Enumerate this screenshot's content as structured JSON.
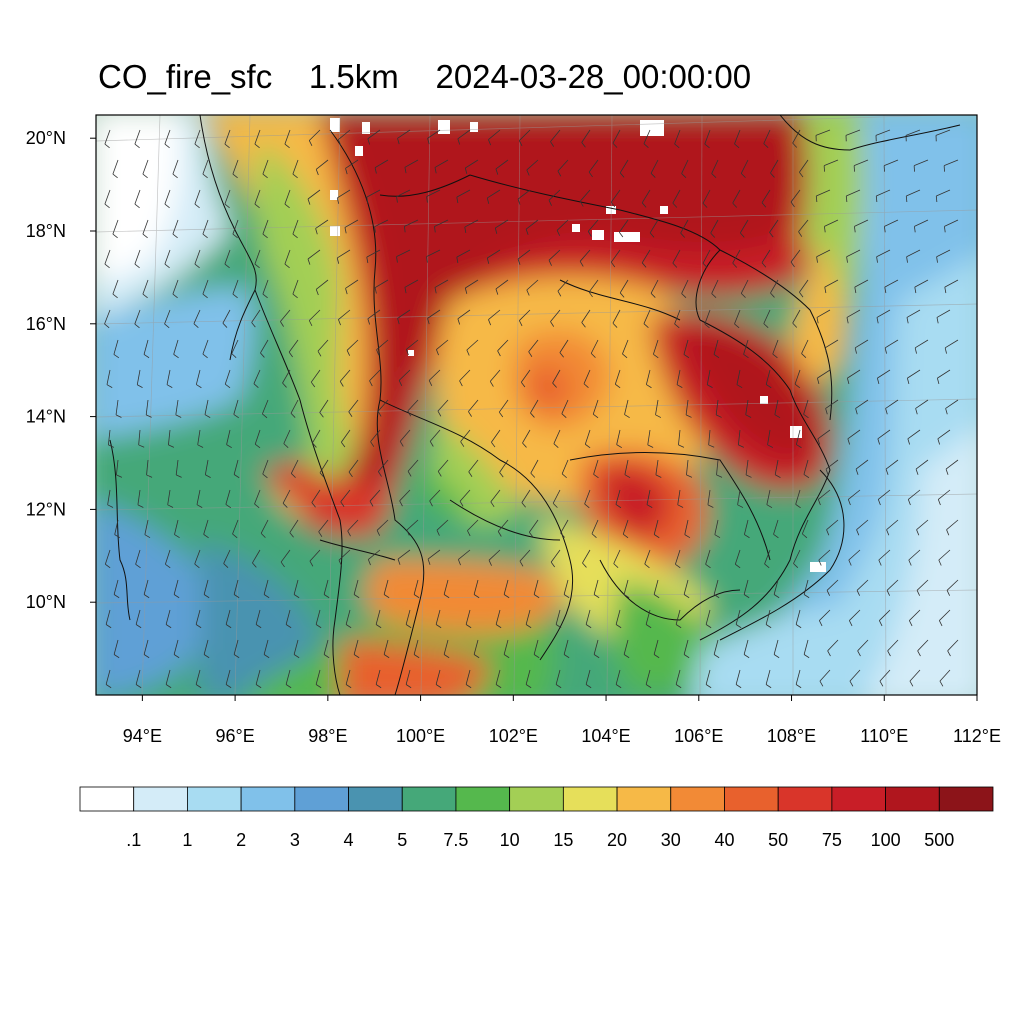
{
  "title": {
    "variable": "CO_fire_sfc",
    "level": "1.5km",
    "time": "2024-03-28_00:00:00"
  },
  "map": {
    "lon_range": [
      93,
      112
    ],
    "lat_range": [
      8,
      20.5
    ],
    "x_ticks": [
      "94°E",
      "96°E",
      "98°E",
      "100°E",
      "102°E",
      "104°E",
      "106°E",
      "108°E",
      "110°E",
      "112°E"
    ],
    "x_tick_values": [
      94,
      96,
      98,
      100,
      102,
      104,
      106,
      108,
      110,
      112
    ],
    "y_ticks": [
      "20°N",
      "18°N",
      "16°N",
      "14°N",
      "12°N",
      "10°N"
    ],
    "y_tick_values": [
      20,
      18,
      16,
      14,
      12,
      10
    ],
    "overlay": "wind barbs",
    "borders": "country and coastline outlines"
  },
  "colorbar": {
    "labels": [
      ".1",
      "1",
      "2",
      "3",
      "4",
      "5",
      "7.5",
      "10",
      "15",
      "20",
      "30",
      "40",
      "50",
      "75",
      "100",
      "500"
    ],
    "colors": [
      "#ffffff",
      "#d4ecf8",
      "#a8dcf2",
      "#80c1ea",
      "#5fa0d6",
      "#4a93b0",
      "#45a879",
      "#55b84d",
      "#a3cf55",
      "#e6df5a",
      "#f6b947",
      "#f28a36",
      "#e8612d",
      "#d9352a",
      "#c81e27",
      "#b0161e",
      "#8c1419"
    ]
  }
}
